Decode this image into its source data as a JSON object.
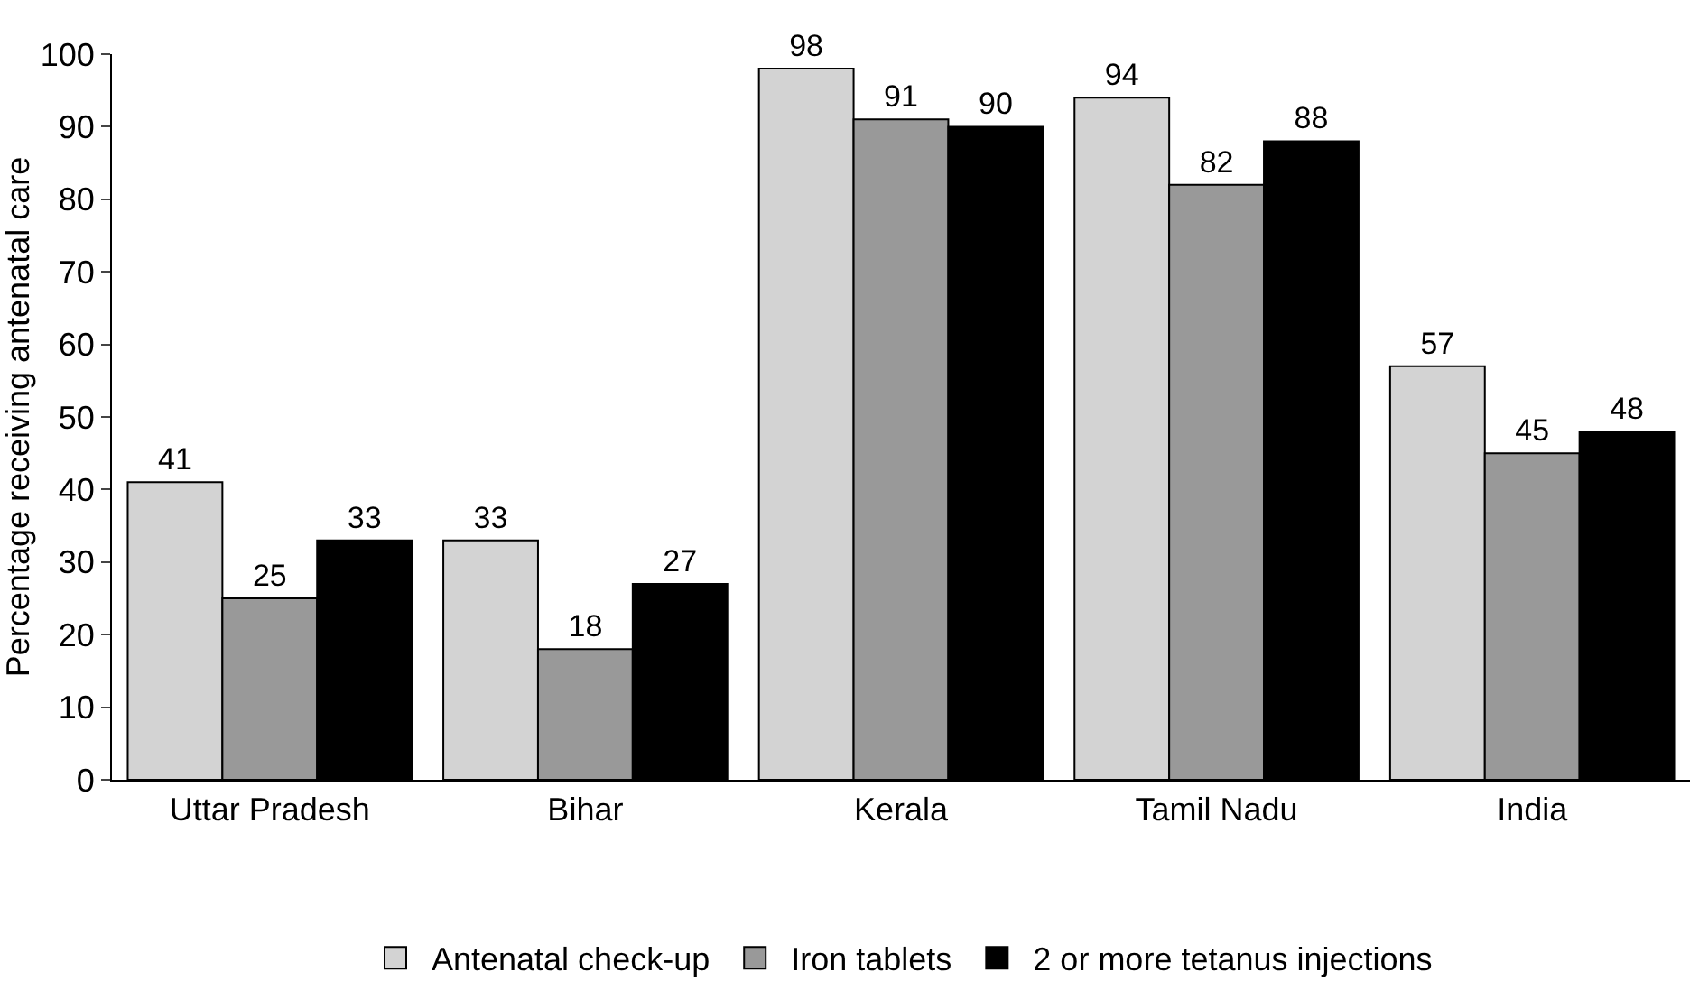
{
  "chart_data": {
    "type": "bar",
    "ylabel": "Percentage receiving antenatal care",
    "categories": [
      "Uttar Pradesh",
      "Bihar",
      "Kerala",
      "Tamil Nadu",
      "India"
    ],
    "series": [
      {
        "name": "Antenatal check-up",
        "color": "#d3d3d3",
        "values": [
          41,
          33,
          98,
          94,
          57
        ]
      },
      {
        "name": "Iron tablets",
        "color": "#999999",
        "values": [
          25,
          18,
          91,
          82,
          45
        ]
      },
      {
        "name": "2 or more tetanus injections",
        "color": "#000000",
        "values": [
          33,
          27,
          90,
          88,
          48
        ]
      }
    ],
    "ylim": [
      0,
      100
    ],
    "yticks": [
      0,
      10,
      20,
      30,
      40,
      50,
      60,
      70,
      80,
      90,
      100
    ],
    "legend": "bottom",
    "data_labels": true
  }
}
